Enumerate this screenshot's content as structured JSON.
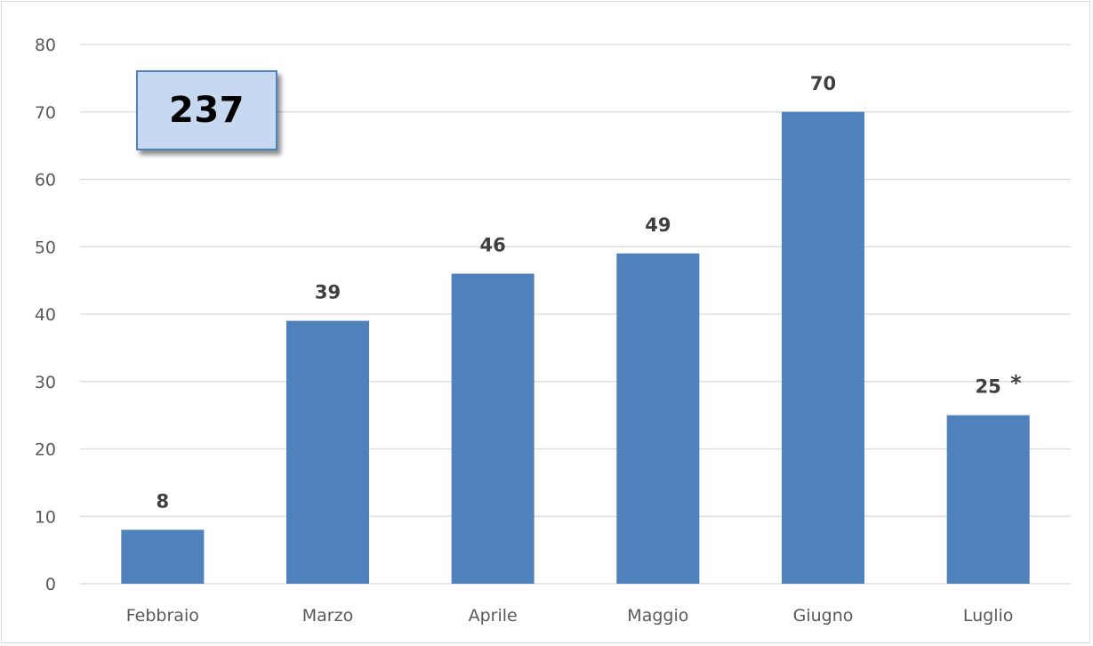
{
  "chart_data": {
    "type": "bar",
    "categories": [
      "Febbraio",
      "Marzo",
      "Aprile",
      "Maggio",
      "Giugno",
      "Luglio"
    ],
    "values": [
      8,
      39,
      46,
      49,
      70,
      25
    ],
    "data_labels": [
      "8",
      "39",
      "46",
      "49",
      "70",
      "25"
    ],
    "footnote_marks": [
      "",
      "",
      "",
      "",
      "",
      "*"
    ],
    "ylim": [
      0,
      80
    ],
    "yticks": [
      0,
      10,
      20,
      30,
      40,
      50,
      60,
      70,
      80
    ],
    "grid": true,
    "bar_color": "#4f81bd",
    "grid_color": "#d9d9d9",
    "title": "",
    "xlabel": "",
    "ylabel": ""
  },
  "total_box": {
    "value": "237",
    "fill_color": "#c6d9f1",
    "border_color": "#4f81bd"
  }
}
